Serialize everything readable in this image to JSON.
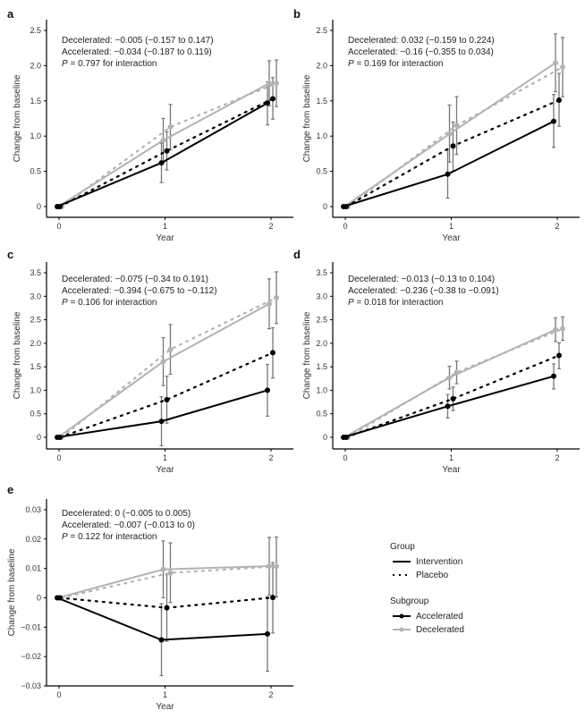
{
  "chart_data": [
    {
      "type": "line",
      "panel": "a",
      "xlabel": "Year",
      "ylabel": "Change from baseline",
      "x": [
        0,
        1,
        2
      ],
      "xticks": [
        "0",
        "1",
        "2"
      ],
      "ylim": [
        0,
        2.5
      ],
      "yticks": [
        "0",
        "0.5",
        "1.0",
        "1.5",
        "2.0",
        "2.5"
      ],
      "ytick_values": [
        0,
        0.5,
        1.0,
        1.5,
        2.0,
        2.5
      ],
      "annotations": [
        "Decelerated: −0.005 (−0.157 to 0.147)",
        "Accelerated: −0.034 (−0.187 to 0.119)",
        "P = 0.797 for interaction"
      ],
      "series": [
        {
          "name": "Intervention – Accelerated",
          "group": "Intervention",
          "subgroup": "Accelerated",
          "values": [
            0,
            0.62,
            1.47
          ],
          "lower": [
            0,
            0.34,
            1.16
          ],
          "upper": [
            0,
            0.9,
            1.77
          ]
        },
        {
          "name": "Placebo – Accelerated",
          "group": "Placebo",
          "subgroup": "Accelerated",
          "values": [
            0,
            0.79,
            1.53
          ],
          "lower": [
            0,
            0.52,
            1.24
          ],
          "upper": [
            0,
            1.06,
            1.83
          ]
        },
        {
          "name": "Intervention – Decelerated",
          "group": "Intervention",
          "subgroup": "Decelerated",
          "values": [
            0,
            0.94,
            1.75
          ],
          "lower": [
            0,
            0.63,
            1.43
          ],
          "upper": [
            0,
            1.25,
            2.07
          ]
        },
        {
          "name": "Placebo – Decelerated",
          "group": "Placebo",
          "subgroup": "Decelerated",
          "values": [
            0,
            1.13,
            1.75
          ],
          "lower": [
            0,
            0.81,
            1.42
          ],
          "upper": [
            0,
            1.45,
            2.08
          ]
        }
      ]
    },
    {
      "type": "line",
      "panel": "b",
      "xlabel": "Year",
      "ylabel": "Change from baseline",
      "x": [
        0,
        1,
        2
      ],
      "xticks": [
        "0",
        "1",
        "2"
      ],
      "ylim": [
        0,
        2.5
      ],
      "yticks": [
        "0",
        "0.5",
        "1.0",
        "1.5",
        "2.0",
        "2.5"
      ],
      "ytick_values": [
        0,
        0.5,
        1.0,
        1.5,
        2.0,
        2.5
      ],
      "annotations": [
        "Decelerated: 0.032 (−0.159 to 0.224)",
        "Accelerated: −0.16 (−0.355 to 0.034)",
        "P = 0.169 for interaction"
      ],
      "series": [
        {
          "name": "Intervention – Accelerated",
          "group": "Intervention",
          "subgroup": "Accelerated",
          "values": [
            0,
            0.46,
            1.21
          ],
          "lower": [
            0,
            0.12,
            0.84
          ],
          "upper": [
            0,
            0.81,
            1.59
          ]
        },
        {
          "name": "Placebo – Accelerated",
          "group": "Placebo",
          "subgroup": "Accelerated",
          "values": [
            0,
            0.86,
            1.51
          ],
          "lower": [
            0,
            0.5,
            1.14
          ],
          "upper": [
            0,
            1.2,
            1.89
          ]
        },
        {
          "name": "Intervention – Decelerated",
          "group": "Intervention",
          "subgroup": "Decelerated",
          "values": [
            0,
            1.03,
            2.04
          ],
          "lower": [
            0,
            0.63,
            1.63
          ],
          "upper": [
            0,
            1.44,
            2.45
          ]
        },
        {
          "name": "Placebo – Decelerated",
          "group": "Placebo",
          "subgroup": "Decelerated",
          "values": [
            0,
            1.15,
            1.98
          ],
          "lower": [
            0,
            0.74,
            1.56
          ],
          "upper": [
            0,
            1.56,
            2.4
          ]
        }
      ]
    },
    {
      "type": "line",
      "panel": "c",
      "xlabel": "Year",
      "ylabel": "Change from baseline",
      "x": [
        0,
        1,
        2
      ],
      "xticks": [
        "0",
        "1",
        "2"
      ],
      "ylim": [
        0,
        3.5
      ],
      "yticks": [
        "0",
        "0.5",
        "1.0",
        "1.5",
        "2.0",
        "2.5",
        "3.0",
        "3.5"
      ],
      "ytick_values": [
        0,
        0.5,
        1.0,
        1.5,
        2.0,
        2.5,
        3.0,
        3.5
      ],
      "annotations": [
        "Decelerated: −0.075 (−0.34 to 0.191)",
        "Accelerated: −0.394 (−0.675 to −0.112)",
        "P = 0.106 for interaction"
      ],
      "series": [
        {
          "name": "Intervention – Accelerated",
          "group": "Intervention",
          "subgroup": "Accelerated",
          "values": [
            0,
            0.34,
            1.0
          ],
          "lower": [
            0,
            -0.18,
            0.45
          ],
          "upper": [
            0,
            0.86,
            1.55
          ]
        },
        {
          "name": "Placebo – Accelerated",
          "group": "Placebo",
          "subgroup": "Accelerated",
          "values": [
            0,
            0.8,
            1.8
          ],
          "lower": [
            0,
            0.3,
            1.26
          ],
          "upper": [
            0,
            1.3,
            2.33
          ]
        },
        {
          "name": "Intervention – Decelerated",
          "group": "Intervention",
          "subgroup": "Decelerated",
          "values": [
            0,
            1.61,
            2.84
          ],
          "lower": [
            0,
            1.1,
            2.31
          ],
          "upper": [
            0,
            2.12,
            3.37
          ]
        },
        {
          "name": "Placebo – Decelerated",
          "group": "Placebo",
          "subgroup": "Decelerated",
          "values": [
            0,
            1.87,
            2.97
          ],
          "lower": [
            0,
            1.34,
            2.42
          ],
          "upper": [
            0,
            2.4,
            3.52
          ]
        }
      ]
    },
    {
      "type": "line",
      "panel": "d",
      "xlabel": "Year",
      "ylabel": "Change from baseline",
      "x": [
        0,
        1,
        2
      ],
      "xticks": [
        "0",
        "1",
        "2"
      ],
      "ylim": [
        0,
        3.5
      ],
      "yticks": [
        "0",
        "0.5",
        "1.0",
        "1.5",
        "2.0",
        "2.5",
        "3.0",
        "3.5"
      ],
      "ytick_values": [
        0,
        0.5,
        1.0,
        1.5,
        2.0,
        2.5,
        3.0,
        3.5
      ],
      "annotations": [
        "Decelerated: −0.013 (−0.13 to 0.104)",
        "Accelerated: −0.236 (−0.38 to −0.091)",
        "P = 0.018 for interaction"
      ],
      "series": [
        {
          "name": "Intervention – Accelerated",
          "group": "Intervention",
          "subgroup": "Accelerated",
          "values": [
            0,
            0.66,
            1.3
          ],
          "lower": [
            0,
            0.41,
            1.03
          ],
          "upper": [
            0,
            0.91,
            1.56
          ]
        },
        {
          "name": "Placebo – Accelerated",
          "group": "Placebo",
          "subgroup": "Accelerated",
          "values": [
            0,
            0.82,
            1.74
          ],
          "lower": [
            0,
            0.57,
            1.46
          ],
          "upper": [
            0,
            1.07,
            2.01
          ]
        },
        {
          "name": "Intervention – Decelerated",
          "group": "Intervention",
          "subgroup": "Decelerated",
          "values": [
            0,
            1.27,
            2.29
          ],
          "lower": [
            0,
            1.03,
            2.04
          ],
          "upper": [
            0,
            1.51,
            2.54
          ]
        },
        {
          "name": "Placebo – Decelerated",
          "group": "Placebo",
          "subgroup": "Decelerated",
          "values": [
            0,
            1.38,
            2.31
          ],
          "lower": [
            0,
            1.14,
            2.06
          ],
          "upper": [
            0,
            1.62,
            2.56
          ]
        }
      ]
    },
    {
      "type": "line",
      "panel": "e",
      "xlabel": "Year",
      "ylabel": "Change from baseline",
      "x": [
        0,
        1,
        2
      ],
      "xticks": [
        "0",
        "1",
        "2"
      ],
      "ylim": [
        -0.03,
        0.03
      ],
      "yticks": [
        "−0.03",
        "−0.02",
        "−0.01",
        "0",
        "0.01",
        "0.02",
        "0.03"
      ],
      "ytick_values": [
        -0.03,
        -0.02,
        -0.01,
        0,
        0.01,
        0.02,
        0.03
      ],
      "annotations": [
        "Decelerated: 0 (−0.005 to 0.005)",
        "Accelerated: −0.007 (−0.013 to 0)",
        "P = 0.122 for interaction"
      ],
      "series": [
        {
          "name": "Intervention – Accelerated",
          "group": "Intervention",
          "subgroup": "Accelerated",
          "values": [
            0,
            -0.0143,
            -0.0123
          ],
          "lower": [
            0,
            -0.0265,
            -0.025
          ],
          "upper": [
            0,
            -0.002,
            0.0004
          ]
        },
        {
          "name": "Placebo – Accelerated",
          "group": "Placebo",
          "subgroup": "Accelerated",
          "values": [
            0,
            -0.0034,
            0.0001
          ],
          "lower": [
            0,
            -0.0148,
            -0.012
          ],
          "upper": [
            0,
            0.008,
            0.012
          ]
        },
        {
          "name": "Intervention – Decelerated",
          "group": "Intervention",
          "subgroup": "Decelerated",
          "values": [
            0,
            0.0097,
            0.0108
          ],
          "lower": [
            0,
            0.0,
            0.001
          ],
          "upper": [
            0,
            0.0194,
            0.0206
          ]
        },
        {
          "name": "Placebo – Decelerated",
          "group": "Placebo",
          "subgroup": "Decelerated",
          "values": [
            0,
            0.0085,
            0.0107
          ],
          "lower": [
            0,
            -0.0016,
            0.0003
          ],
          "upper": [
            0,
            0.0187,
            0.0207
          ]
        }
      ]
    }
  ],
  "legend": {
    "group_title": "Group",
    "group_items": [
      {
        "label": "Intervention",
        "style": "solid"
      },
      {
        "label": "Placebo",
        "style": "dotted"
      }
    ],
    "subgroup_title": "Subgroup",
    "subgroup_items": [
      {
        "label": "Accelerated",
        "color": "#000000"
      },
      {
        "label": "Decelerated",
        "color": "#b3b3b3"
      }
    ]
  },
  "colors": {
    "accelerated": "#000000",
    "decelerated": "#b3b3b3",
    "error_bar": "#777777",
    "axis": "#000000"
  }
}
